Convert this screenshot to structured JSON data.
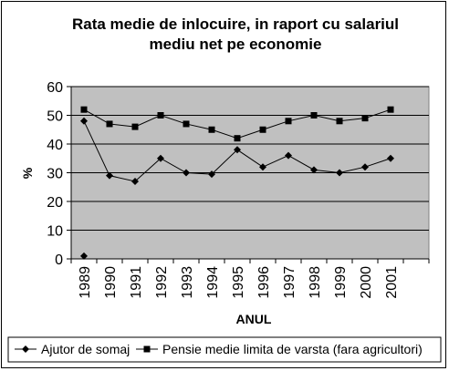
{
  "chart_data": {
    "type": "line",
    "title_line1": "Rata medie de inlocuire, in raport cu salariul",
    "title_line2": "mediu net pe economie",
    "xlabel": "ANUL",
    "ylabel": "%",
    "categories": [
      "1989",
      "1990",
      "1991",
      "1992",
      "1993",
      "1994",
      "1995",
      "1996",
      "1997",
      "1998",
      "1999",
      "2000",
      "2001"
    ],
    "ylim": [
      0,
      60
    ],
    "yticks": [
      "0",
      "10",
      "20",
      "30",
      "40",
      "50",
      "60"
    ],
    "grid": "horizontal",
    "legend_position": "bottom",
    "series": [
      {
        "name": "Ajutor de somaj",
        "marker": "diamond",
        "color": "#000000",
        "values": [
          48,
          29,
          27,
          35,
          30,
          29.5,
          38,
          32,
          36,
          31,
          30,
          32,
          35
        ],
        "extra_point": {
          "x": "1989",
          "y": 1
        }
      },
      {
        "name": "Pensie medie limita de varsta (fara agricultori)",
        "marker": "square",
        "color": "#000000",
        "values": [
          52,
          47,
          46,
          50,
          47,
          45,
          42,
          45,
          48,
          50,
          48,
          49,
          52
        ]
      }
    ],
    "plot_background": "#c0c0c0"
  }
}
